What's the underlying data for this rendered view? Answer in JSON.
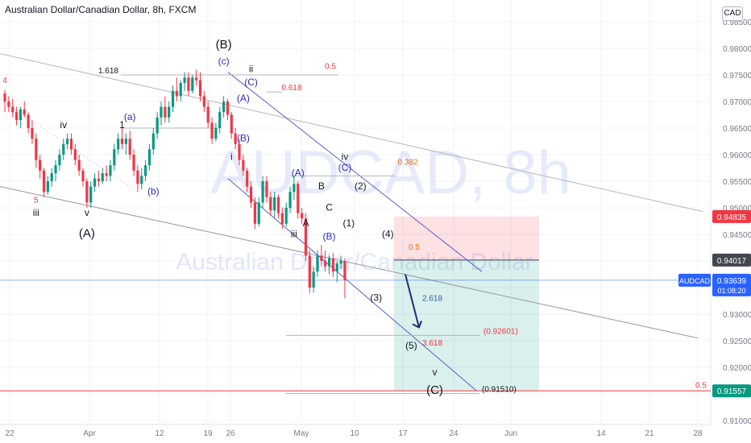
{
  "header": {
    "symbol_title": "Australian Dollar/Canadian Dollar, 8h, FXCM"
  },
  "watermark": {
    "big": "AUDCAD, 8h",
    "small": "Australian Dollar/Canadian Dollar"
  },
  "currency_badge": "CAD",
  "price_tags": {
    "current": {
      "label": "AUDCAD",
      "price": "0.93639",
      "countdown": "01:08:20",
      "color": "#2962ff"
    },
    "stop": {
      "price": "0.94835",
      "color": "#f23645"
    },
    "entry": {
      "price": "0.94017",
      "color": "#434651"
    },
    "target": {
      "price": "0.91557",
      "color": "#089981"
    }
  },
  "chart_data": {
    "type": "candlestick",
    "y_ticks": [
      "0.98500",
      "0.98000",
      "0.97500",
      "0.97000",
      "0.96500",
      "0.96000",
      "0.95500",
      "0.95000",
      "0.94500",
      "0.94000",
      "0.93500",
      "0.93000",
      "0.92500",
      "0.92000",
      "0.91500",
      "0.91000"
    ],
    "x_ticks": [
      "22",
      "Apr",
      "12",
      "19",
      "26",
      "May",
      "10",
      "17",
      "24",
      "Jun",
      "14",
      "21",
      "28"
    ],
    "ylim": [
      0.9085,
      0.9865
    ],
    "colors": {
      "up": "#089981",
      "down": "#f23645",
      "channel": "#5b5fc7"
    },
    "candles": [
      [
        0.9715,
        0.9722,
        0.968,
        0.97
      ],
      [
        0.97,
        0.971,
        0.968,
        0.969
      ],
      [
        0.969,
        0.9705,
        0.967,
        0.968
      ],
      [
        0.968,
        0.969,
        0.9655,
        0.9665
      ],
      [
        0.9665,
        0.969,
        0.965,
        0.9685
      ],
      [
        0.9685,
        0.97,
        0.967,
        0.9675
      ],
      [
        0.9675,
        0.968,
        0.964,
        0.965
      ],
      [
        0.965,
        0.9665,
        0.962,
        0.963
      ],
      [
        0.963,
        0.964,
        0.9575,
        0.959
      ],
      [
        0.959,
        0.96,
        0.9555,
        0.957
      ],
      [
        0.957,
        0.9575,
        0.952,
        0.953
      ],
      [
        0.953,
        0.956,
        0.9525,
        0.955
      ],
      [
        0.955,
        0.9575,
        0.954,
        0.9565
      ],
      [
        0.9565,
        0.959,
        0.955,
        0.958
      ],
      [
        0.958,
        0.961,
        0.957,
        0.96
      ],
      [
        0.96,
        0.963,
        0.959,
        0.962
      ],
      [
        0.962,
        0.964,
        0.961,
        0.963
      ],
      [
        0.963,
        0.964,
        0.96,
        0.961
      ],
      [
        0.961,
        0.962,
        0.958,
        0.959
      ],
      [
        0.959,
        0.96,
        0.956,
        0.957
      ],
      [
        0.957,
        0.9575,
        0.954,
        0.955
      ],
      [
        0.955,
        0.9555,
        0.95,
        0.951
      ],
      [
        0.951,
        0.955,
        0.95,
        0.954
      ],
      [
        0.954,
        0.9565,
        0.953,
        0.9555
      ],
      [
        0.9555,
        0.957,
        0.954,
        0.955
      ],
      [
        0.955,
        0.9575,
        0.9545,
        0.9565
      ],
      [
        0.9565,
        0.958,
        0.955,
        0.956
      ],
      [
        0.956,
        0.959,
        0.955,
        0.958
      ],
      [
        0.958,
        0.962,
        0.957,
        0.961
      ],
      [
        0.961,
        0.964,
        0.96,
        0.963
      ],
      [
        0.963,
        0.965,
        0.961,
        0.962
      ],
      [
        0.962,
        0.964,
        0.96,
        0.963
      ],
      [
        0.963,
        0.9645,
        0.959,
        0.96
      ],
      [
        0.96,
        0.961,
        0.956,
        0.957
      ],
      [
        0.957,
        0.958,
        0.953,
        0.9545
      ],
      [
        0.9545,
        0.9575,
        0.9535,
        0.956
      ],
      [
        0.956,
        0.959,
        0.955,
        0.958
      ],
      [
        0.958,
        0.962,
        0.957,
        0.961
      ],
      [
        0.961,
        0.965,
        0.96,
        0.964
      ],
      [
        0.964,
        0.968,
        0.963,
        0.967
      ],
      [
        0.967,
        0.97,
        0.9655,
        0.969
      ],
      [
        0.969,
        0.971,
        0.966,
        0.967
      ],
      [
        0.967,
        0.97,
        0.966,
        0.969
      ],
      [
        0.969,
        0.973,
        0.968,
        0.972
      ],
      [
        0.972,
        0.9745,
        0.97,
        0.971
      ],
      [
        0.971,
        0.974,
        0.97,
        0.9735
      ],
      [
        0.9735,
        0.9755,
        0.972,
        0.9745
      ],
      [
        0.9745,
        0.9755,
        0.971,
        0.972
      ],
      [
        0.972,
        0.975,
        0.9715,
        0.9745
      ],
      [
        0.9745,
        0.976,
        0.973,
        0.974
      ],
      [
        0.974,
        0.9755,
        0.97,
        0.971
      ],
      [
        0.971,
        0.972,
        0.968,
        0.969
      ],
      [
        0.969,
        0.97,
        0.965,
        0.966
      ],
      [
        0.966,
        0.967,
        0.962,
        0.963
      ],
      [
        0.963,
        0.966,
        0.9625,
        0.965
      ],
      [
        0.965,
        0.969,
        0.964,
        0.968
      ],
      [
        0.968,
        0.971,
        0.967,
        0.97
      ],
      [
        0.97,
        0.9705,
        0.9665,
        0.9675
      ],
      [
        0.9675,
        0.968,
        0.963,
        0.964
      ],
      [
        0.964,
        0.965,
        0.961,
        0.962
      ],
      [
        0.962,
        0.963,
        0.958,
        0.959
      ],
      [
        0.959,
        0.96,
        0.956,
        0.957
      ],
      [
        0.957,
        0.9575,
        0.953,
        0.954
      ],
      [
        0.954,
        0.955,
        0.95,
        0.951
      ],
      [
        0.951,
        0.952,
        0.946,
        0.947
      ],
      [
        0.947,
        0.952,
        0.9465,
        0.951
      ],
      [
        0.951,
        0.956,
        0.95,
        0.955
      ],
      [
        0.955,
        0.956,
        0.951,
        0.952
      ],
      [
        0.952,
        0.953,
        0.9485,
        0.9495
      ],
      [
        0.9495,
        0.953,
        0.948,
        0.952
      ],
      [
        0.952,
        0.9525,
        0.948,
        0.949
      ],
      [
        0.949,
        0.95,
        0.946,
        0.947
      ],
      [
        0.947,
        0.951,
        0.9465,
        0.95
      ],
      [
        0.95,
        0.954,
        0.949,
        0.953
      ],
      [
        0.953,
        0.956,
        0.9515,
        0.9545
      ],
      [
        0.9545,
        0.955,
        0.948,
        0.949
      ],
      [
        0.949,
        0.95,
        0.947,
        0.948
      ],
      [
        0.948,
        0.949,
        0.94,
        0.941
      ],
      [
        0.941,
        0.942,
        0.934,
        0.935
      ],
      [
        0.935,
        0.939,
        0.934,
        0.938
      ],
      [
        0.938,
        0.942,
        0.937,
        0.941
      ],
      [
        0.941,
        0.943,
        0.939,
        0.94
      ],
      [
        0.94,
        0.942,
        0.938,
        0.939
      ],
      [
        0.939,
        0.941,
        0.9375,
        0.9405
      ],
      [
        0.9405,
        0.9415,
        0.937,
        0.938
      ],
      [
        0.938,
        0.94,
        0.936,
        0.9395
      ],
      [
        0.9395,
        0.941,
        0.9385,
        0.94
      ],
      [
        0.94,
        0.9405,
        0.933,
        0.9364
      ]
    ],
    "wave_labels": [
      {
        "text": "4",
        "x": 0,
        "y": 0.9735,
        "color": "#f23645"
      },
      {
        "text": "5",
        "x": 8,
        "y": 0.951,
        "color": "#f23645"
      },
      {
        "text": "iii",
        "x": 8,
        "y": 0.9485,
        "color": "#131722"
      },
      {
        "text": "(A)",
        "x": 21,
        "y": 0.9445,
        "color": "#131722"
      },
      {
        "text": "iv",
        "x": 15,
        "y": 0.965,
        "color": "#131722"
      },
      {
        "text": "v",
        "x": 21,
        "y": 0.9485,
        "color": "#131722"
      },
      {
        "text": "(a)",
        "x": 32,
        "y": 0.9665,
        "color": "#2b2bb8"
      },
      {
        "text": "1",
        "x": 30,
        "y": 0.965,
        "color": "#131722"
      },
      {
        "text": "(b)",
        "x": 38,
        "y": 0.9525,
        "color": "#2b2bb8"
      },
      {
        "text": "(B)",
        "x": 56,
        "y": 0.98,
        "color": "#131722"
      },
      {
        "text": "(c)",
        "x": 56,
        "y": 0.977,
        "color": "#2b2bb8"
      },
      {
        "text": "ii",
        "x": 63,
        "y": 0.9755,
        "color": "#131722"
      },
      {
        "text": "(C)",
        "x": 63,
        "y": 0.973,
        "color": "#2b2bb8"
      },
      {
        "text": "(A)",
        "x": 61,
        "y": 0.97,
        "color": "#2b2bb8"
      },
      {
        "text": "(B)",
        "x": 61,
        "y": 0.9625,
        "color": "#2b2bb8"
      },
      {
        "text": "i",
        "x": 58,
        "y": 0.959,
        "color": "#131722"
      },
      {
        "text": "(A)",
        "x": 75,
        "y": 0.956,
        "color": "#2b2bb8"
      },
      {
        "text": "B",
        "x": 81,
        "y": 0.9535,
        "color": "#131722"
      },
      {
        "text": "A",
        "x": 77,
        "y": 0.9465,
        "color": "#131722"
      },
      {
        "text": "C",
        "x": 83,
        "y": 0.9495,
        "color": "#131722"
      },
      {
        "text": "(B)",
        "x": 83,
        "y": 0.944,
        "color": "#2b2bb8"
      },
      {
        "text": "iii",
        "x": 74,
        "y": 0.9445,
        "color": "#131722"
      },
      {
        "text": "iv",
        "x": 87,
        "y": 0.959,
        "color": "#131722"
      },
      {
        "text": "(C)",
        "x": 87,
        "y": 0.957,
        "color": "#2b2bb8"
      },
      {
        "text": "(1)",
        "x": 88,
        "y": 0.9465,
        "color": "#131722"
      },
      {
        "text": "(2)",
        "x": 91,
        "y": 0.9535,
        "color": "#131722"
      },
      {
        "text": "(3)",
        "x": 95,
        "y": 0.9325,
        "color": "#131722"
      },
      {
        "text": "(4)",
        "x": 98,
        "y": 0.9445,
        "color": "#131722"
      },
      {
        "text": "(5)",
        "x": 104,
        "y": 0.9235,
        "color": "#131722"
      },
      {
        "text": "v",
        "x": 110,
        "y": 0.9185,
        "color": "#131722"
      },
      {
        "text": "(C)",
        "x": 110,
        "y": 0.915,
        "color": "#131722"
      }
    ],
    "fib_levels": [
      {
        "text": "1.618",
        "y": 0.975,
        "color": "#131722"
      },
      {
        "text": "0.5",
        "y": 0.9758,
        "color": "#f23645"
      },
      {
        "text": "0.618",
        "y": 0.9718,
        "color": "#f23645"
      },
      {
        "text": "0.382",
        "y": 0.9578,
        "color": "#e07020"
      },
      {
        "text": "0.5",
        "y": 0.9418,
        "color": "#e07020"
      },
      {
        "text": "2.618",
        "y": 0.9322,
        "color": "#2b5fa8"
      },
      {
        "text": "(0.92601)",
        "y": 0.926,
        "color": "#f23645"
      },
      {
        "text": "3.618",
        "y": 0.9238,
        "color": "#f23645"
      },
      {
        "text": "(0.91510)",
        "y": 0.9151,
        "color": "#131722"
      },
      {
        "text": "0.5",
        "y": 0.9158,
        "color": "#f23645"
      }
    ]
  }
}
